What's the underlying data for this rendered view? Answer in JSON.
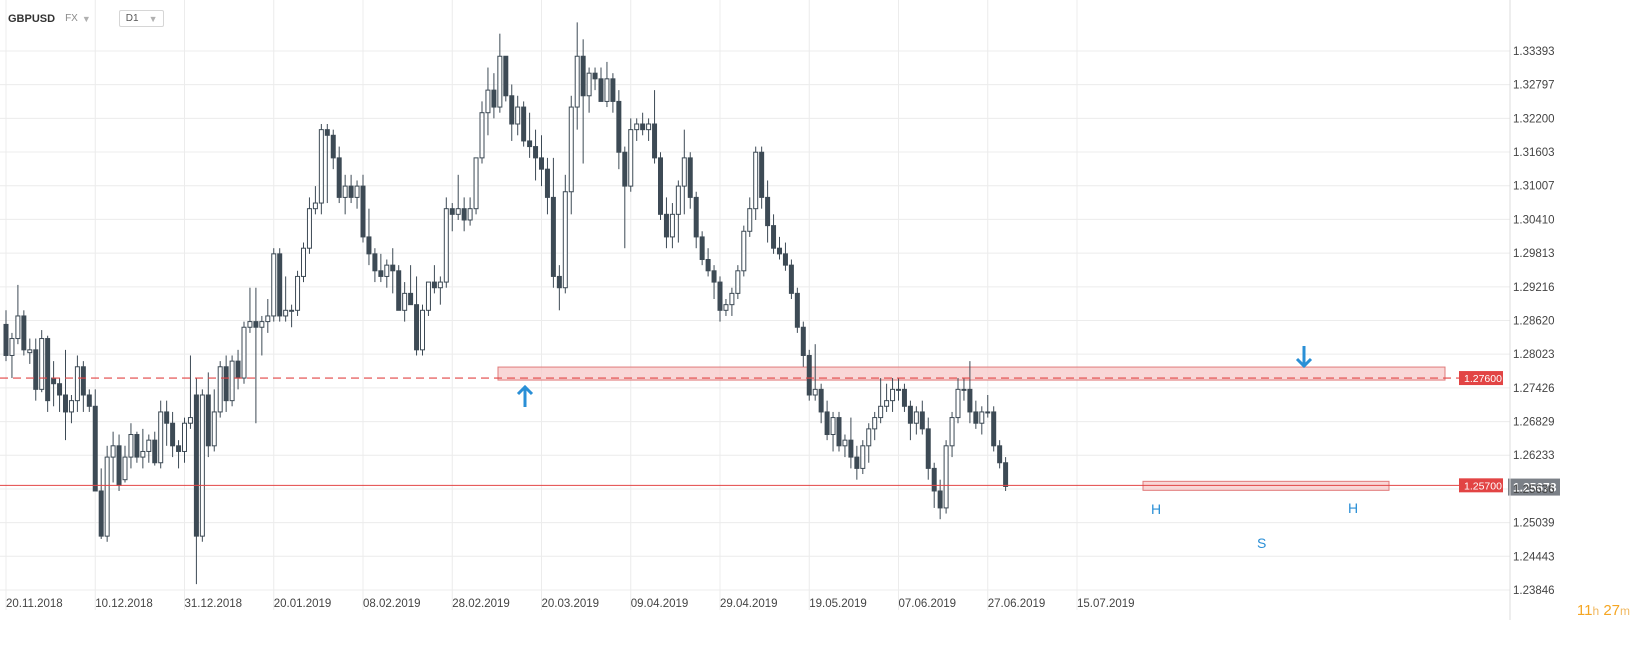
{
  "toolbar": {
    "symbol": "GBPUSD",
    "market": "FX",
    "timeframe": "D1"
  },
  "timer": {
    "hours": "11",
    "h_unit": "h",
    "minutes": "27",
    "m_unit": "m"
  },
  "colors": {
    "bear": "#3d4a55",
    "bull_fill": "#ffffff",
    "bull_stroke": "#3d4a55",
    "level": "#e24444",
    "zone_fill": "#f7c9c9",
    "zone_stroke": "#e07a7a",
    "arrow": "#2a8fd6",
    "grid": "#ececec",
    "current_tag": "#7b8087"
  },
  "chart_data": {
    "type": "candlestick",
    "title": "",
    "ylim": [
      1.236,
      1.338
    ],
    "x_tick_labels": [
      "20.11.2018",
      "10.12.2018",
      "31.12.2018",
      "20.01.2019",
      "08.02.2019",
      "28.02.2019",
      "20.03.2019",
      "09.04.2019",
      "29.04.2019",
      "19.05.2019",
      "07.06.2019",
      "27.06.2019",
      "15.07.2019"
    ],
    "x_tick_index": [
      0,
      15,
      30,
      45,
      60,
      75,
      90,
      105,
      120,
      135,
      150,
      165,
      180
    ],
    "y_ticks": [
      "1.33393",
      "1.32797",
      "1.32200",
      "1.31603",
      "1.31007",
      "1.30410",
      "1.29813",
      "1.29216",
      "1.28620",
      "1.28023",
      "1.27426",
      "1.26829",
      "1.26233",
      "1.25636",
      "1.25039",
      "1.24443",
      "1.23846"
    ],
    "candles": [
      {
        "o": 1.2855,
        "h": 1.288,
        "l": 1.279,
        "c": 1.28
      },
      {
        "o": 1.28,
        "h": 1.284,
        "l": 1.276,
        "c": 1.283
      },
      {
        "o": 1.283,
        "h": 1.2925,
        "l": 1.282,
        "c": 1.287
      },
      {
        "o": 1.287,
        "h": 1.288,
        "l": 1.28,
        "c": 1.281
      },
      {
        "o": 1.2805,
        "h": 1.283,
        "l": 1.2785,
        "c": 1.281
      },
      {
        "o": 1.281,
        "h": 1.283,
        "l": 1.272,
        "c": 1.274
      },
      {
        "o": 1.274,
        "h": 1.2845,
        "l": 1.2735,
        "c": 1.283
      },
      {
        "o": 1.283,
        "h": 1.2835,
        "l": 1.27,
        "c": 1.272
      },
      {
        "o": 1.276,
        "h": 1.279,
        "l": 1.271,
        "c": 1.275
      },
      {
        "o": 1.275,
        "h": 1.276,
        "l": 1.27,
        "c": 1.273
      },
      {
        "o": 1.273,
        "h": 1.281,
        "l": 1.265,
        "c": 1.27
      },
      {
        "o": 1.27,
        "h": 1.273,
        "l": 1.268,
        "c": 1.272
      },
      {
        "o": 1.272,
        "h": 1.28,
        "l": 1.27,
        "c": 1.278
      },
      {
        "o": 1.278,
        "h": 1.279,
        "l": 1.27,
        "c": 1.273
      },
      {
        "o": 1.273,
        "h": 1.274,
        "l": 1.27,
        "c": 1.271
      },
      {
        "o": 1.271,
        "h": 1.274,
        "l": 1.256,
        "c": 1.256
      },
      {
        "o": 1.256,
        "h": 1.26,
        "l": 1.2475,
        "c": 1.248
      },
      {
        "o": 1.248,
        "h": 1.264,
        "l": 1.247,
        "c": 1.262
      },
      {
        "o": 1.262,
        "h": 1.2665,
        "l": 1.2575,
        "c": 1.264
      },
      {
        "o": 1.264,
        "h": 1.266,
        "l": 1.256,
        "c": 1.257
      },
      {
        "o": 1.258,
        "h": 1.264,
        "l": 1.2575,
        "c": 1.262
      },
      {
        "o": 1.262,
        "h": 1.268,
        "l": 1.26,
        "c": 1.266
      },
      {
        "o": 1.266,
        "h": 1.2665,
        "l": 1.261,
        "c": 1.262
      },
      {
        "o": 1.262,
        "h": 1.267,
        "l": 1.26,
        "c": 1.263
      },
      {
        "o": 1.263,
        "h": 1.266,
        "l": 1.261,
        "c": 1.265
      },
      {
        "o": 1.265,
        "h": 1.2665,
        "l": 1.2605,
        "c": 1.261
      },
      {
        "o": 1.261,
        "h": 1.272,
        "l": 1.26,
        "c": 1.27
      },
      {
        "o": 1.27,
        "h": 1.272,
        "l": 1.264,
        "c": 1.268
      },
      {
        "o": 1.268,
        "h": 1.27,
        "l": 1.262,
        "c": 1.264
      },
      {
        "o": 1.264,
        "h": 1.265,
        "l": 1.26,
        "c": 1.263
      },
      {
        "o": 1.263,
        "h": 1.269,
        "l": 1.261,
        "c": 1.268
      },
      {
        "o": 1.268,
        "h": 1.28,
        "l": 1.267,
        "c": 1.269
      },
      {
        "o": 1.273,
        "h": 1.276,
        "l": 1.2395,
        "c": 1.248
      },
      {
        "o": 1.248,
        "h": 1.274,
        "l": 1.247,
        "c": 1.273
      },
      {
        "o": 1.273,
        "h": 1.277,
        "l": 1.262,
        "c": 1.264
      },
      {
        "o": 1.264,
        "h": 1.274,
        "l": 1.263,
        "c": 1.27
      },
      {
        "o": 1.27,
        "h": 1.279,
        "l": 1.269,
        "c": 1.278
      },
      {
        "o": 1.278,
        "h": 1.28,
        "l": 1.27,
        "c": 1.272
      },
      {
        "o": 1.272,
        "h": 1.28,
        "l": 1.271,
        "c": 1.279
      },
      {
        "o": 1.279,
        "h": 1.281,
        "l": 1.274,
        "c": 1.276
      },
      {
        "o": 1.276,
        "h": 1.286,
        "l": 1.275,
        "c": 1.285
      },
      {
        "o": 1.285,
        "h": 1.292,
        "l": 1.284,
        "c": 1.286
      },
      {
        "o": 1.286,
        "h": 1.292,
        "l": 1.268,
        "c": 1.285
      },
      {
        "o": 1.285,
        "h": 1.287,
        "l": 1.28,
        "c": 1.286
      },
      {
        "o": 1.286,
        "h": 1.29,
        "l": 1.284,
        "c": 1.287
      },
      {
        "o": 1.287,
        "h": 1.299,
        "l": 1.286,
        "c": 1.298
      },
      {
        "o": 1.298,
        "h": 1.299,
        "l": 1.286,
        "c": 1.287
      },
      {
        "o": 1.287,
        "h": 1.294,
        "l": 1.286,
        "c": 1.288
      },
      {
        "o": 1.288,
        "h": 1.289,
        "l": 1.285,
        "c": 1.288
      },
      {
        "o": 1.288,
        "h": 1.295,
        "l": 1.287,
        "c": 1.294
      },
      {
        "o": 1.294,
        "h": 1.3,
        "l": 1.293,
        "c": 1.299
      },
      {
        "o": 1.299,
        "h": 1.308,
        "l": 1.298,
        "c": 1.306
      },
      {
        "o": 1.306,
        "h": 1.31,
        "l": 1.305,
        "c": 1.307
      },
      {
        "o": 1.307,
        "h": 1.321,
        "l": 1.305,
        "c": 1.32
      },
      {
        "o": 1.32,
        "h": 1.321,
        "l": 1.307,
        "c": 1.319
      },
      {
        "o": 1.319,
        "h": 1.32,
        "l": 1.313,
        "c": 1.315
      },
      {
        "o": 1.315,
        "h": 1.317,
        "l": 1.307,
        "c": 1.308
      },
      {
        "o": 1.308,
        "h": 1.312,
        "l": 1.305,
        "c": 1.31
      },
      {
        "o": 1.31,
        "h": 1.312,
        "l": 1.307,
        "c": 1.308
      },
      {
        "o": 1.308,
        "h": 1.311,
        "l": 1.306,
        "c": 1.31
      },
      {
        "o": 1.31,
        "h": 1.312,
        "l": 1.3,
        "c": 1.301
      },
      {
        "o": 1.301,
        "h": 1.306,
        "l": 1.296,
        "c": 1.298
      },
      {
        "o": 1.298,
        "h": 1.299,
        "l": 1.293,
        "c": 1.295
      },
      {
        "o": 1.295,
        "h": 1.298,
        "l": 1.293,
        "c": 1.294
      },
      {
        "o": 1.294,
        "h": 1.297,
        "l": 1.292,
        "c": 1.296
      },
      {
        "o": 1.296,
        "h": 1.299,
        "l": 1.291,
        "c": 1.295
      },
      {
        "o": 1.295,
        "h": 1.296,
        "l": 1.288,
        "c": 1.288
      },
      {
        "o": 1.288,
        "h": 1.293,
        "l": 1.286,
        "c": 1.291
      },
      {
        "o": 1.291,
        "h": 1.296,
        "l": 1.289,
        "c": 1.289
      },
      {
        "o": 1.289,
        "h": 1.294,
        "l": 1.28,
        "c": 1.281
      },
      {
        "o": 1.281,
        "h": 1.289,
        "l": 1.28,
        "c": 1.288
      },
      {
        "o": 1.288,
        "h": 1.293,
        "l": 1.287,
        "c": 1.293
      },
      {
        "o": 1.293,
        "h": 1.296,
        "l": 1.291,
        "c": 1.292
      },
      {
        "o": 1.292,
        "h": 1.294,
        "l": 1.289,
        "c": 1.293
      },
      {
        "o": 1.293,
        "h": 1.308,
        "l": 1.292,
        "c": 1.306
      },
      {
        "o": 1.306,
        "h": 1.307,
        "l": 1.302,
        "c": 1.305
      },
      {
        "o": 1.305,
        "h": 1.312,
        "l": 1.304,
        "c": 1.306
      },
      {
        "o": 1.306,
        "h": 1.308,
        "l": 1.302,
        "c": 1.304
      },
      {
        "o": 1.304,
        "h": 1.308,
        "l": 1.303,
        "c": 1.306
      },
      {
        "o": 1.306,
        "h": 1.315,
        "l": 1.305,
        "c": 1.315
      },
      {
        "o": 1.315,
        "h": 1.325,
        "l": 1.314,
        "c": 1.323
      },
      {
        "o": 1.323,
        "h": 1.331,
        "l": 1.319,
        "c": 1.327
      },
      {
        "o": 1.327,
        "h": 1.33,
        "l": 1.322,
        "c": 1.324
      },
      {
        "o": 1.324,
        "h": 1.337,
        "l": 1.323,
        "c": 1.333
      },
      {
        "o": 1.333,
        "h": 1.333,
        "l": 1.325,
        "c": 1.326
      },
      {
        "o": 1.326,
        "h": 1.328,
        "l": 1.318,
        "c": 1.321
      },
      {
        "o": 1.321,
        "h": 1.326,
        "l": 1.319,
        "c": 1.324
      },
      {
        "o": 1.324,
        "h": 1.325,
        "l": 1.317,
        "c": 1.318
      },
      {
        "o": 1.318,
        "h": 1.323,
        "l": 1.315,
        "c": 1.317
      },
      {
        "o": 1.317,
        "h": 1.32,
        "l": 1.311,
        "c": 1.315
      },
      {
        "o": 1.315,
        "h": 1.319,
        "l": 1.31,
        "c": 1.313
      },
      {
        "o": 1.313,
        "h": 1.315,
        "l": 1.305,
        "c": 1.308
      },
      {
        "o": 1.308,
        "h": 1.315,
        "l": 1.292,
        "c": 1.294
      },
      {
        "o": 1.294,
        "h": 1.296,
        "l": 1.288,
        "c": 1.292
      },
      {
        "o": 1.292,
        "h": 1.312,
        "l": 1.291,
        "c": 1.309
      },
      {
        "o": 1.309,
        "h": 1.326,
        "l": 1.305,
        "c": 1.324
      },
      {
        "o": 1.324,
        "h": 1.339,
        "l": 1.32,
        "c": 1.333
      },
      {
        "o": 1.333,
        "h": 1.336,
        "l": 1.314,
        "c": 1.326
      },
      {
        "o": 1.326,
        "h": 1.331,
        "l": 1.323,
        "c": 1.33
      },
      {
        "o": 1.33,
        "h": 1.331,
        "l": 1.327,
        "c": 1.329
      },
      {
        "o": 1.329,
        "h": 1.331,
        "l": 1.325,
        "c": 1.325
      },
      {
        "o": 1.325,
        "h": 1.332,
        "l": 1.324,
        "c": 1.329
      },
      {
        "o": 1.329,
        "h": 1.33,
        "l": 1.323,
        "c": 1.325
      },
      {
        "o": 1.325,
        "h": 1.327,
        "l": 1.313,
        "c": 1.316
      },
      {
        "o": 1.316,
        "h": 1.317,
        "l": 1.299,
        "c": 1.31
      },
      {
        "o": 1.31,
        "h": 1.322,
        "l": 1.309,
        "c": 1.32
      },
      {
        "o": 1.32,
        "h": 1.322,
        "l": 1.318,
        "c": 1.321
      },
      {
        "o": 1.321,
        "h": 1.323,
        "l": 1.319,
        "c": 1.32
      },
      {
        "o": 1.32,
        "h": 1.322,
        "l": 1.318,
        "c": 1.321
      },
      {
        "o": 1.321,
        "h": 1.327,
        "l": 1.314,
        "c": 1.315
      },
      {
        "o": 1.315,
        "h": 1.316,
        "l": 1.304,
        "c": 1.305
      },
      {
        "o": 1.305,
        "h": 1.308,
        "l": 1.299,
        "c": 1.301
      },
      {
        "o": 1.301,
        "h": 1.307,
        "l": 1.299,
        "c": 1.305
      },
      {
        "o": 1.305,
        "h": 1.311,
        "l": 1.3,
        "c": 1.31
      },
      {
        "o": 1.31,
        "h": 1.32,
        "l": 1.305,
        "c": 1.315
      }
    ]
  },
  "levels": {
    "upper": {
      "value": 1.276,
      "label": "1.27600"
    },
    "lower": {
      "value": 1.257,
      "label": "1.25700"
    },
    "current": {
      "value": 1.25678,
      "label": "1.25678"
    }
  },
  "annotations": {
    "head_shoulders": [
      {
        "label": "H"
      },
      {
        "label": "S"
      },
      {
        "label": "H"
      }
    ]
  }
}
